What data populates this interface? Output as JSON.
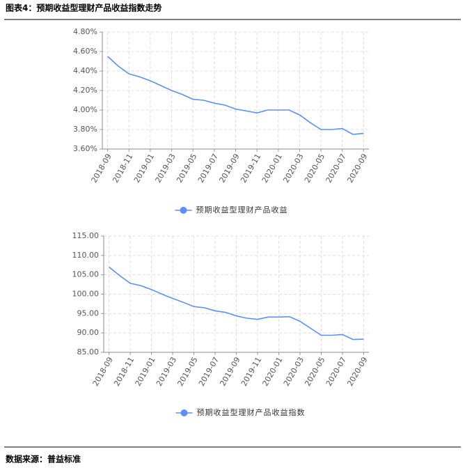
{
  "header": {
    "title": "图表4：预期收益型理财产品收益指数走势"
  },
  "footer": {
    "source": "数据来源：普益标准"
  },
  "chart_data": [
    {
      "type": "line",
      "categories": [
        "2018-09",
        null,
        "2018-11",
        null,
        "2019-01",
        null,
        "2019-03",
        null,
        "2019-05",
        null,
        "2019-07",
        null,
        "2019-09",
        null,
        "2019-11",
        null,
        "2020-01",
        null,
        "2020-03",
        null,
        "2020-05",
        null,
        "2020-07",
        null,
        "2020-09"
      ],
      "series": [
        {
          "name": "预期收益型理财产品收益",
          "color": "#5b8ff9",
          "values": [
            4.55,
            4.45,
            4.37,
            4.34,
            4.3,
            4.25,
            4.2,
            4.16,
            4.11,
            4.1,
            4.07,
            4.05,
            4.01,
            3.99,
            3.97,
            4.0,
            4.0,
            4.0,
            3.95,
            3.87,
            3.8,
            3.8,
            3.81,
            3.75,
            3.76
          ]
        }
      ],
      "ylim": [
        3.6,
        4.8
      ],
      "yticks": [
        {
          "value": 3.6,
          "label": "3.60%"
        },
        {
          "value": 3.8,
          "label": "3.80%"
        },
        {
          "value": 4.0,
          "label": "4.00%"
        },
        {
          "value": 4.2,
          "label": "4.20%"
        },
        {
          "value": 4.4,
          "label": "4.40%"
        },
        {
          "value": 4.6,
          "label": "4.60%"
        },
        {
          "value": 4.8,
          "label": "4.80%"
        }
      ],
      "grid": true,
      "legend": "bottom"
    },
    {
      "type": "line",
      "categories": [
        "2018-09",
        null,
        "2018-11",
        null,
        "2019-01",
        null,
        "2019-03",
        null,
        "2019-05",
        null,
        "2019-07",
        null,
        "2019-09",
        null,
        "2019-11",
        null,
        "2020-01",
        null,
        "2020-03",
        null,
        "2020-05",
        null,
        "2020-07",
        null,
        "2020-09"
      ],
      "series": [
        {
          "name": "预期收益型理财产品收益指数",
          "color": "#5b8ff9",
          "values": [
            107.0,
            104.8,
            102.8,
            102.2,
            101.2,
            100.0,
            98.9,
            97.9,
            96.8,
            96.5,
            95.7,
            95.3,
            94.4,
            93.8,
            93.5,
            94.1,
            94.1,
            94.2,
            93.0,
            91.2,
            89.4,
            89.4,
            89.6,
            88.3,
            88.4
          ]
        }
      ],
      "ylim": [
        85,
        115
      ],
      "yticks": [
        {
          "value": 85,
          "label": "85.00"
        },
        {
          "value": 90,
          "label": "90.00"
        },
        {
          "value": 95,
          "label": "95.00"
        },
        {
          "value": 100,
          "label": "100.00"
        },
        {
          "value": 105,
          "label": "105.00"
        },
        {
          "value": 110,
          "label": "110.00"
        },
        {
          "value": 115,
          "label": "115.00"
        }
      ],
      "grid": true,
      "legend": "bottom"
    }
  ]
}
